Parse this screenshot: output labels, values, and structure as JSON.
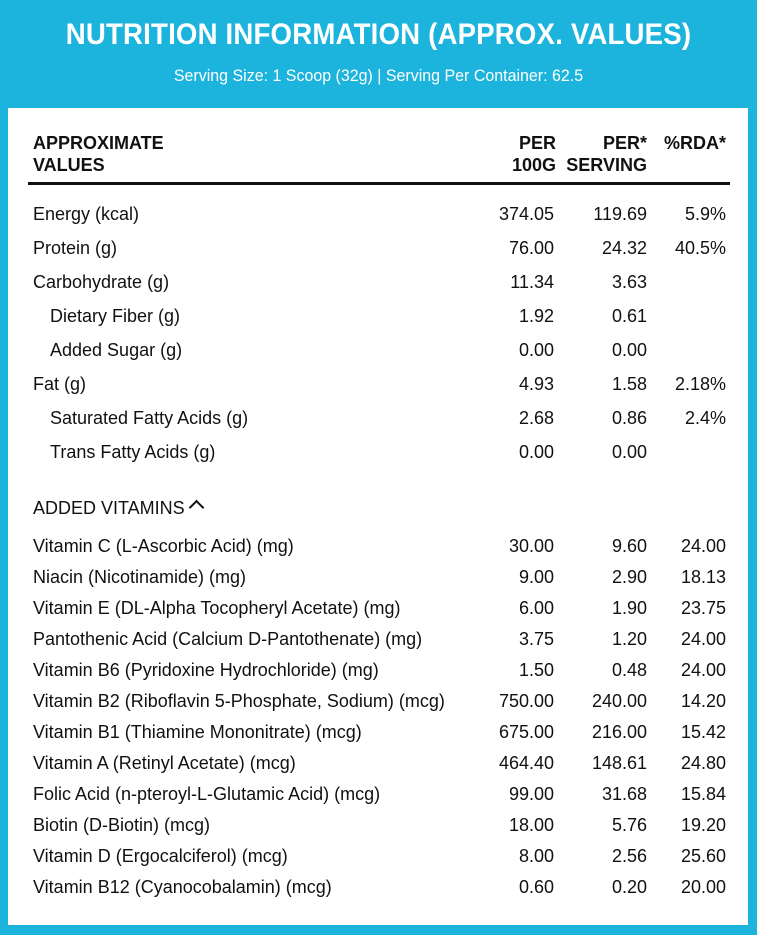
{
  "header": {
    "title": "NUTRITION INFORMATION (APPROX. VALUES)",
    "subtitle": "Serving Size: 1 Scoop (32g) | Serving Per Container: 62.5"
  },
  "columns": {
    "label_line1": "APPROXIMATE",
    "label_line2": "VALUES",
    "per100_line1": "PER",
    "per100_line2": "100G",
    "perserv_line1": "PER*",
    "perserv_line2": "SERVING",
    "rda": "%RDA*"
  },
  "nutrients": [
    {
      "label": "Energy (kcal)",
      "per100": "374.05",
      "serving": "119.69",
      "rda": "5.9%",
      "sub": false
    },
    {
      "label": "Protein (g)",
      "per100": "76.00",
      "serving": "24.32",
      "rda": "40.5%",
      "sub": false
    },
    {
      "label": "Carbohydrate (g)",
      "per100": "11.34",
      "serving": "3.63",
      "rda": "",
      "sub": false
    },
    {
      "label": "Dietary Fiber (g)",
      "per100": "1.92",
      "serving": "0.61",
      "rda": "",
      "sub": true
    },
    {
      "label": "Added Sugar (g)",
      "per100": "0.00",
      "serving": "0.00",
      "rda": "",
      "sub": true
    },
    {
      "label": "Fat (g)",
      "per100": "4.93",
      "serving": "1.58",
      "rda": "2.18%",
      "sub": false
    },
    {
      "label": "Saturated Fatty Acids (g)",
      "per100": "2.68",
      "serving": "0.86",
      "rda": "2.4%",
      "sub": true
    },
    {
      "label": "Trans Fatty Acids (g)",
      "per100": "0.00",
      "serving": "0.00",
      "rda": "",
      "sub": true
    }
  ],
  "vitamins_heading": "ADDED VITAMINS",
  "vitamins": [
    {
      "label": "Vitamin C (L-Ascorbic Acid) (mg)",
      "per100": "30.00",
      "serving": "9.60",
      "rda": "24.00"
    },
    {
      "label": "Niacin (Nicotinamide) (mg)",
      "per100": "9.00",
      "serving": "2.90",
      "rda": "18.13"
    },
    {
      "label": "Vitamin E (DL-Alpha Tocopheryl Acetate) (mg)",
      "per100": "6.00",
      "serving": "1.90",
      "rda": "23.75"
    },
    {
      "label": "Pantothenic Acid (Calcium D-Pantothenate) (mg)",
      "per100": "3.75",
      "serving": "1.20",
      "rda": "24.00"
    },
    {
      "label": "Vitamin B6 (Pyridoxine Hydrochloride) (mg)",
      "per100": "1.50",
      "serving": "0.48",
      "rda": "24.00"
    },
    {
      "label": "Vitamin B2 (Riboflavin 5-Phosphate, Sodium) (mcg)",
      "per100": "750.00",
      "serving": "240.00",
      "rda": "14.20"
    },
    {
      "label": "Vitamin B1 (Thiamine Mononitrate) (mcg)",
      "per100": "675.00",
      "serving": "216.00",
      "rda": "15.42"
    },
    {
      "label": "Vitamin A (Retinyl Acetate) (mcg)",
      "per100": "464.40",
      "serving": "148.61",
      "rda": "24.80"
    },
    {
      "label": "Folic Acid (n-pteroyl-L-Glutamic Acid) (mcg)",
      "per100": "99.00",
      "serving": "31.68",
      "rda": "15.84"
    },
    {
      "label": "Biotin (D-Biotin) (mcg)",
      "per100": "18.00",
      "serving": "5.76",
      "rda": "19.20"
    },
    {
      "label": "Vitamin D (Ergocalciferol) (mcg)",
      "per100": "8.00",
      "serving": "2.56",
      "rda": "25.60"
    },
    {
      "label": "Vitamin B12 (Cyanocobalamin) (mcg)",
      "per100": "0.60",
      "serving": "0.20",
      "rda": "20.00"
    }
  ],
  "colors": {
    "border": "#1cb4dc",
    "text": "#111111",
    "header_text": "#ffffff"
  }
}
